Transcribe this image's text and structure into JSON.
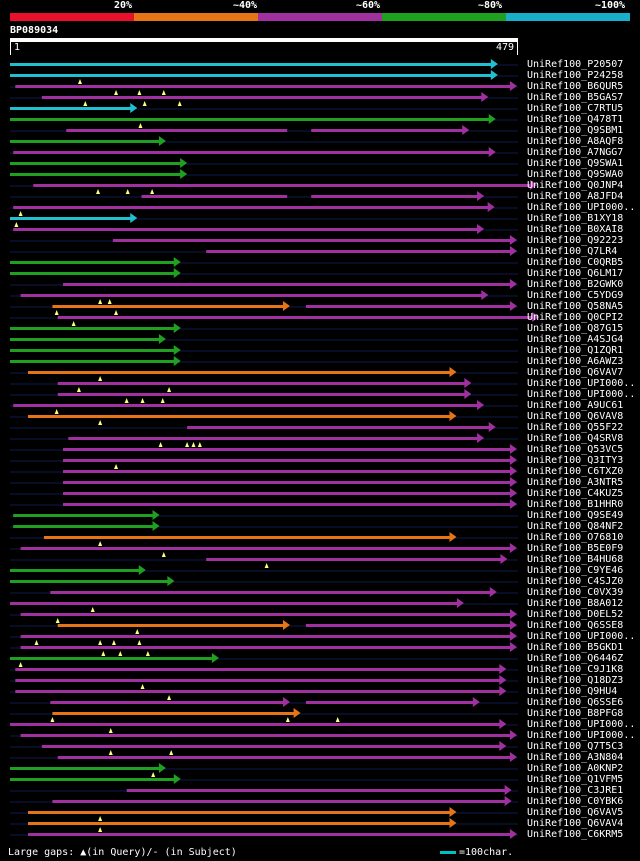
{
  "scale": {
    "labels": [
      "20%",
      "~40%",
      "~60%",
      "~80%",
      "~100%"
    ],
    "colors": [
      "#e8102a",
      "#e87418",
      "#a030a0",
      "#20a020",
      "#18b0c8"
    ]
  },
  "query": {
    "id": "BP089034",
    "start": "1",
    "end": "479"
  },
  "hits": [
    {
      "name": "UniRef100_P20507",
      "color": "#20c0d0",
      "s": 1,
      "e": 461,
      "segs": [
        [
          1,
          461
        ]
      ],
      "marks": []
    },
    {
      "name": "UniRef100_P24258",
      "color": "#20c0d0",
      "s": 1,
      "e": 461,
      "segs": [
        [
          1,
          461
        ]
      ],
      "marks": [
        67
      ]
    },
    {
      "name": "UniRef100_B6QUR5",
      "color": "#a030a0",
      "s": 6,
      "e": 479,
      "segs": [
        [
          6,
          479
        ]
      ],
      "marks": [
        101,
        123,
        146
      ]
    },
    {
      "name": "UniRef100_B5GAS7",
      "color": "#a030a0",
      "s": 31,
      "e": 452,
      "segs": [
        [
          31,
          452
        ]
      ],
      "marks": [
        72,
        128,
        161
      ]
    },
    {
      "name": "UniRef100_C7RTU5",
      "color": "#20c0d0",
      "s": 1,
      "e": 121,
      "segs": [
        [
          1,
          121
        ]
      ],
      "marks": []
    },
    {
      "name": "UniRef100_Q478T1",
      "color": "#20a020",
      "s": 1,
      "e": 459,
      "segs": [
        [
          1,
          459
        ]
      ],
      "marks": [
        124
      ]
    },
    {
      "name": "UniRef100_Q9SBM1",
      "color": "#a030a0",
      "s": 54,
      "e": 434,
      "segs": [
        [
          54,
          268
        ],
        [
          285,
          434
        ]
      ],
      "marks": []
    },
    {
      "name": "UniRef100_A8AQF8",
      "color": "#20a020",
      "s": 1,
      "e": 148,
      "segs": [
        [
          1,
          148
        ]
      ],
      "marks": []
    },
    {
      "name": "UniRef100_A7NGG7",
      "color": "#a030a0",
      "s": 4,
      "e": 459,
      "segs": [
        [
          4,
          459
        ]
      ],
      "marks": []
    },
    {
      "name": "UniRef100_Q9SWA1",
      "color": "#20a020",
      "s": 1,
      "e": 168,
      "segs": [
        [
          1,
          168
        ]
      ],
      "marks": []
    },
    {
      "name": "UniRef100_Q9SWA0",
      "color": "#20a020",
      "s": 1,
      "e": 168,
      "segs": [
        [
          1,
          168
        ]
      ],
      "marks": []
    },
    {
      "name": "UniRef100_Q0JNP4",
      "color": "#a030a0",
      "s": 23,
      "e": 498,
      "segs": [
        [
          23,
          498
        ]
      ],
      "marks": [
        84,
        112,
        135
      ]
    },
    {
      "name": "UniRef100_A8JFD4",
      "color": "#a030a0",
      "s": 125,
      "e": 448,
      "segs": [
        [
          125,
          268
        ],
        [
          285,
          448
        ]
      ],
      "marks": []
    },
    {
      "name": "UniRef100_UPI000..",
      "color": "#a030a0",
      "s": 4,
      "e": 458,
      "segs": [
        [
          4,
          458
        ]
      ],
      "marks": [
        11
      ]
    },
    {
      "name": "UniRef100_B1XY18",
      "color": "#20c0d0",
      "s": 1,
      "e": 121,
      "segs": [
        [
          1,
          121
        ]
      ],
      "marks": [
        7
      ]
    },
    {
      "name": "UniRef100_B0XAI8",
      "color": "#a030a0",
      "s": 4,
      "e": 448,
      "segs": [
        [
          4,
          448
        ]
      ],
      "marks": []
    },
    {
      "name": "UniRef100_Q92223",
      "color": "#a030a0",
      "s": 98,
      "e": 479,
      "segs": [
        [
          98,
          479
        ]
      ],
      "marks": []
    },
    {
      "name": "UniRef100_Q7LR4",
      "color": "#a030a0",
      "s": 186,
      "e": 479,
      "segs": [
        [
          186,
          479
        ]
      ],
      "marks": []
    },
    {
      "name": "UniRef100_C0QRB5",
      "color": "#20a020",
      "s": 1,
      "e": 162,
      "segs": [
        [
          1,
          162
        ]
      ],
      "marks": []
    },
    {
      "name": "UniRef100_Q6LM17",
      "color": "#20a020",
      "s": 1,
      "e": 162,
      "segs": [
        [
          1,
          162
        ]
      ],
      "marks": []
    },
    {
      "name": "UniRef100_B2GWK0",
      "color": "#a030a0",
      "s": 51,
      "e": 479,
      "segs": [
        [
          51,
          479
        ]
      ],
      "marks": []
    },
    {
      "name": "UniRef100_C5YDG9",
      "color": "#a030a0",
      "s": 11,
      "e": 452,
      "segs": [
        [
          11,
          452
        ]
      ],
      "marks": [
        86,
        95
      ]
    },
    {
      "name": "UniRef100_Q58NA5",
      "color": "#e87418",
      "s": 41,
      "e": 265,
      "segs": [
        [
          41,
          265
        ]
      ],
      "marks": [
        45,
        101
      ],
      "ext": {
        "s": 280,
        "e": 479,
        "color": "#a030a0"
      }
    },
    {
      "name": "UniRef100_Q0CPI2",
      "color": "#a030a0",
      "s": 46,
      "e": 500,
      "segs": [
        [
          46,
          500
        ]
      ],
      "marks": [
        61
      ]
    },
    {
      "name": "UniRef100_Q87G15",
      "color": "#20a020",
      "s": 1,
      "e": 162,
      "segs": [
        [
          1,
          162
        ]
      ],
      "marks": []
    },
    {
      "name": "UniRef100_A4SJG4",
      "color": "#20a020",
      "s": 1,
      "e": 148,
      "segs": [
        [
          1,
          148
        ]
      ],
      "marks": []
    },
    {
      "name": "UniRef100_Q1ZQR1",
      "color": "#20a020",
      "s": 1,
      "e": 162,
      "segs": [
        [
          1,
          162
        ]
      ],
      "marks": []
    },
    {
      "name": "UniRef100_A6AWZ3",
      "color": "#20a020",
      "s": 1,
      "e": 162,
      "segs": [
        [
          1,
          162
        ]
      ],
      "marks": []
    },
    {
      "name": "UniRef100_Q6VAV7",
      "color": "#e87418",
      "s": 18,
      "e": 422,
      "segs": [
        [
          18,
          422
        ]
      ],
      "marks": [
        86
      ]
    },
    {
      "name": "UniRef100_UPI000..",
      "color": "#a030a0",
      "s": 46,
      "e": 436,
      "segs": [
        [
          46,
          436
        ]
      ],
      "marks": [
        66,
        151
      ]
    },
    {
      "name": "UniRef100_UPI000..",
      "color": "#a030a0",
      "s": 46,
      "e": 436,
      "segs": [
        [
          46,
          436
        ]
      ],
      "marks": [
        111,
        126,
        145
      ]
    },
    {
      "name": "UniRef100_A9UC61",
      "color": "#a030a0",
      "s": 4,
      "e": 448,
      "segs": [
        [
          4,
          448
        ]
      ],
      "marks": [
        45
      ]
    },
    {
      "name": "UniRef100_Q6VAV8",
      "color": "#e87418",
      "s": 18,
      "e": 422,
      "segs": [
        [
          18,
          422
        ]
      ],
      "marks": [
        86
      ]
    },
    {
      "name": "UniRef100_Q55F22",
      "color": "#a030a0",
      "s": 168,
      "e": 459,
      "segs": [
        [
          168,
          459
        ]
      ],
      "marks": []
    },
    {
      "name": "UniRef100_Q4SRV8",
      "color": "#a030a0",
      "s": 56,
      "e": 448,
      "segs": [
        [
          56,
          448
        ]
      ],
      "marks": [
        143,
        168,
        174,
        180
      ]
    },
    {
      "name": "UniRef100_Q53VC5",
      "color": "#a030a0",
      "s": 51,
      "e": 479,
      "segs": [
        [
          51,
          479
        ]
      ],
      "marks": []
    },
    {
      "name": "UniRef100_Q3ITY3",
      "color": "#a030a0",
      "s": 51,
      "e": 479,
      "segs": [
        [
          51,
          479
        ]
      ],
      "marks": [
        101
      ]
    },
    {
      "name": "UniRef100_C6TXZ0",
      "color": "#a030a0",
      "s": 51,
      "e": 479,
      "segs": [
        [
          51,
          479
        ]
      ],
      "marks": []
    },
    {
      "name": "UniRef100_A3NTR5",
      "color": "#a030a0",
      "s": 51,
      "e": 479,
      "segs": [
        [
          51,
          479
        ]
      ],
      "marks": []
    },
    {
      "name": "UniRef100_C4KUZ5",
      "color": "#a030a0",
      "s": 51,
      "e": 479,
      "segs": [
        [
          51,
          479
        ]
      ],
      "marks": []
    },
    {
      "name": "UniRef100_B1HHR0",
      "color": "#a030a0",
      "s": 51,
      "e": 479,
      "segs": [
        [
          51,
          479
        ]
      ],
      "marks": []
    },
    {
      "name": "UniRef100_Q9SE49",
      "color": "#20a020",
      "s": 4,
      "e": 142,
      "segs": [
        [
          4,
          142
        ]
      ],
      "marks": []
    },
    {
      "name": "UniRef100_Q84NF2",
      "color": "#20a020",
      "s": 4,
      "e": 142,
      "segs": [
        [
          4,
          142
        ]
      ],
      "marks": []
    },
    {
      "name": "UniRef100_O76810",
      "color": "#e87418",
      "s": 33,
      "e": 422,
      "segs": [
        [
          33,
          422
        ]
      ],
      "marks": [
        86
      ]
    },
    {
      "name": "UniRef100_B5E0F9",
      "color": "#a030a0",
      "s": 11,
      "e": 479,
      "segs": [
        [
          11,
          479
        ]
      ],
      "marks": [
        146
      ]
    },
    {
      "name": "UniRef100_B4HU68",
      "color": "#a030a0",
      "s": 186,
      "e": 470,
      "segs": [
        [
          186,
          470
        ]
      ],
      "marks": [
        243
      ]
    },
    {
      "name": "UniRef100_C9YE46",
      "color": "#20a020",
      "s": 1,
      "e": 129,
      "segs": [
        [
          1,
          129
        ]
      ],
      "marks": []
    },
    {
      "name": "UniRef100_C4SJZ0",
      "color": "#20a020",
      "s": 1,
      "e": 156,
      "segs": [
        [
          1,
          156
        ]
      ],
      "marks": []
    },
    {
      "name": "UniRef100_C0VX39",
      "color": "#a030a0",
      "s": 39,
      "e": 460,
      "segs": [
        [
          39,
          460
        ]
      ],
      "marks": []
    },
    {
      "name": "UniRef100_B8A012",
      "color": "#a030a0",
      "s": 1,
      "e": 429,
      "segs": [
        [
          1,
          429
        ]
      ],
      "marks": [
        79
      ]
    },
    {
      "name": "UniRef100_D0EL52",
      "color": "#a030a0",
      "s": 11,
      "e": 479,
      "segs": [
        [
          11,
          479
        ]
      ],
      "marks": [
        46
      ]
    },
    {
      "name": "UniRef100_Q6SSE8",
      "color": "#e87418",
      "s": 46,
      "e": 265,
      "segs": [
        [
          46,
          265
        ]
      ],
      "marks": [
        121
      ],
      "ext": {
        "s": 280,
        "e": 479,
        "color": "#a030a0"
      }
    },
    {
      "name": "UniRef100_UPI000..",
      "color": "#a030a0",
      "s": 11,
      "e": 479,
      "segs": [
        [
          11,
          479
        ]
      ],
      "marks": [
        26,
        86,
        99,
        123
      ]
    },
    {
      "name": "UniRef100_B5GKD1",
      "color": "#a030a0",
      "s": 11,
      "e": 479,
      "segs": [
        [
          11,
          479
        ]
      ],
      "marks": [
        89,
        105,
        131
      ]
    },
    {
      "name": "UniRef100_Q6446Z",
      "color": "#20a020",
      "s": 1,
      "e": 198,
      "segs": [
        [
          1,
          198
        ]
      ],
      "marks": [
        11
      ]
    },
    {
      "name": "UniRef100_C9J1K8",
      "color": "#a030a0",
      "s": 6,
      "e": 469,
      "segs": [
        [
          6,
          469
        ]
      ],
      "marks": []
    },
    {
      "name": "UniRef100_Q18DZ3",
      "color": "#a030a0",
      "s": 6,
      "e": 469,
      "segs": [
        [
          6,
          469
        ]
      ],
      "marks": [
        126
      ]
    },
    {
      "name": "UniRef100_Q9HU4",
      "color": "#a030a0",
      "s": 6,
      "e": 469,
      "segs": [
        [
          6,
          469
        ]
      ],
      "marks": [
        151
      ]
    },
    {
      "name": "UniRef100_Q6SSE6",
      "color": "#a030a0",
      "s": 39,
      "e": 265,
      "segs": [
        [
          39,
          265
        ]
      ],
      "marks": [],
      "ext": {
        "s": 280,
        "e": 444,
        "color": "#a030a0"
      }
    },
    {
      "name": "UniRef100_B8PFG8",
      "color": "#e87418",
      "s": 41,
      "e": 275,
      "segs": [
        [
          41,
          275
        ]
      ],
      "marks": [
        41,
        263,
        310
      ]
    },
    {
      "name": "UniRef100_UPI000..",
      "color": "#a030a0",
      "s": 1,
      "e": 469,
      "segs": [
        [
          1,
          469
        ]
      ],
      "marks": [
        96
      ]
    },
    {
      "name": "UniRef100_UPI000..",
      "color": "#a030a0",
      "s": 11,
      "e": 479,
      "segs": [
        [
          11,
          479
        ]
      ],
      "marks": []
    },
    {
      "name": "UniRef100_Q7T5C3",
      "color": "#a030a0",
      "s": 31,
      "e": 469,
      "segs": [
        [
          31,
          469
        ]
      ],
      "marks": [
        96,
        153
      ]
    },
    {
      "name": "UniRef100_A3N804",
      "color": "#a030a0",
      "s": 46,
      "e": 479,
      "segs": [
        [
          46,
          479
        ]
      ],
      "marks": []
    },
    {
      "name": "UniRef100_A0KNP2",
      "color": "#20a020",
      "s": 1,
      "e": 148,
      "segs": [
        [
          1,
          148
        ]
      ],
      "marks": [
        136
      ]
    },
    {
      "name": "UniRef100_Q1VFM5",
      "color": "#20a020",
      "s": 1,
      "e": 162,
      "segs": [
        [
          1,
          162
        ]
      ],
      "marks": []
    },
    {
      "name": "UniRef100_C3JRE1",
      "color": "#a030a0",
      "s": 111,
      "e": 474,
      "segs": [
        [
          111,
          474
        ]
      ],
      "marks": []
    },
    {
      "name": "UniRef100_C0YBK6",
      "color": "#a030a0",
      "s": 41,
      "e": 474,
      "segs": [
        [
          41,
          474
        ]
      ],
      "marks": []
    },
    {
      "name": "UniRef100_Q6VAV5",
      "color": "#e87418",
      "s": 18,
      "e": 422,
      "segs": [
        [
          18,
          422
        ]
      ],
      "marks": [
        86
      ]
    },
    {
      "name": "UniRef100_Q6VAV4",
      "color": "#e87418",
      "s": 18,
      "e": 422,
      "segs": [
        [
          18,
          422
        ]
      ],
      "marks": [
        86
      ]
    },
    {
      "name": "UniRef100_C6KRM5",
      "color": "#a030a0",
      "s": 18,
      "e": 479,
      "segs": [
        [
          18,
          479
        ]
      ],
      "marks": []
    }
  ],
  "footer": {
    "gaps_text": "Large gaps: ▲(in Query)/- (in Subject)",
    "scale_text": "=100char."
  }
}
